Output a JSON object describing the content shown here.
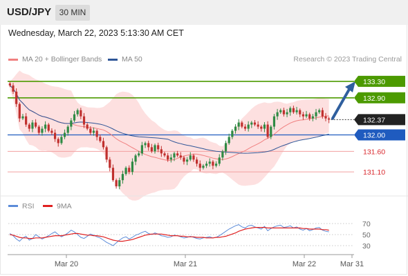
{
  "header": {
    "symbol": "USD/JPY",
    "interval": "30 MIN"
  },
  "timestamp": "Wednesday, March 22, 2023 5:13:30 AM CET",
  "legend": [
    {
      "label": "MA 20 + Bollinger Bands",
      "color": "#f08080"
    },
    {
      "label": "MA 50",
      "color": "#2e5597"
    }
  ],
  "copyright": "Research © 2023 Trading Central",
  "colors": {
    "green": "#4c9a00",
    "blue": "#1f5bbf",
    "red": "#d9292e",
    "candle_up": "#2f8a44",
    "candle_down": "#c0302e",
    "arrow": "#2f5f9e",
    "band_fill": "#fcd6d6"
  },
  "chart_data": [
    {
      "type": "candlestick",
      "ylim": [
        130.55,
        133.6
      ],
      "levels": [
        {
          "value": 133.3,
          "label": "133.30",
          "style": "green-box"
        },
        {
          "value": 132.9,
          "label": "132.90",
          "style": "green-box"
        },
        {
          "value": 132.37,
          "label": "132.37",
          "style": "current"
        },
        {
          "value": 132.0,
          "label": "132.00",
          "style": "blue-box"
        },
        {
          "value": 131.6,
          "label": "131.60",
          "style": "red-text"
        },
        {
          "value": 131.1,
          "label": "131.10",
          "style": "red-text"
        }
      ],
      "x_ticks": [
        "Mar 20",
        "Mar 21",
        "Mar 22",
        "Mar 31"
      ],
      "arrow": {
        "from": 132.4,
        "to": 133.3
      },
      "closes": [
        133.2,
        133.05,
        132.75,
        132.4,
        132.45,
        132.25,
        132.15,
        132.3,
        132.2,
        132.05,
        132.15,
        132.25,
        132.1,
        132.05,
        131.9,
        131.8,
        131.95,
        132.05,
        132.2,
        132.35,
        132.5,
        132.6,
        132.45,
        132.25,
        132.15,
        132.05,
        132.1,
        131.95,
        131.85,
        131.7,
        131.4,
        131.2,
        130.9,
        130.75,
        130.9,
        131.05,
        131.2,
        131.1,
        131.35,
        131.5,
        131.55,
        131.75,
        131.8,
        131.7,
        131.6,
        131.75,
        131.65,
        131.55,
        131.5,
        131.4,
        131.45,
        131.55,
        131.5,
        131.45,
        131.35,
        131.4,
        131.5,
        131.4,
        131.3,
        131.2,
        131.25,
        131.3,
        131.35,
        131.25,
        131.3,
        131.45,
        131.6,
        131.8,
        131.95,
        132.1,
        132.2,
        132.3,
        132.2,
        132.15,
        132.25,
        132.3,
        132.25,
        132.2,
        132.15,
        132.25,
        131.95,
        132.2,
        132.45,
        132.55,
        132.6,
        132.5,
        132.55,
        132.65,
        132.55,
        132.6,
        132.5,
        132.45,
        132.5,
        132.4,
        132.45,
        132.55,
        132.6,
        132.45,
        132.4,
        132.37
      ]
    },
    {
      "type": "line",
      "title": "RSI",
      "series": [
        {
          "name": "RSI",
          "color": "#5b8bd8"
        },
        {
          "name": "9MA",
          "color": "#e02020"
        }
      ],
      "ylim": [
        20,
        80
      ],
      "y_ticks": [
        30,
        50,
        70
      ],
      "rsi": [
        52,
        48,
        42,
        38,
        44,
        47,
        40,
        43,
        50,
        46,
        42,
        45,
        48,
        52,
        55,
        50,
        46,
        49,
        53,
        58,
        55,
        50,
        45,
        43,
        47,
        51,
        49,
        46,
        44,
        40,
        36,
        33,
        30,
        35,
        40,
        44,
        46,
        42,
        45,
        49,
        51,
        54,
        56,
        52,
        50,
        53,
        51,
        48,
        47,
        45,
        46,
        49,
        48,
        46,
        44,
        45,
        47,
        45,
        43,
        42,
        44,
        45,
        46,
        44,
        45,
        48,
        52,
        56,
        60,
        63,
        66,
        68,
        64,
        62,
        66,
        67,
        64,
        62,
        60,
        65,
        57,
        61,
        64,
        66,
        67,
        63,
        64,
        66,
        62,
        64,
        60,
        58,
        61,
        57,
        59,
        62,
        63,
        58,
        56,
        55
      ],
      "ma9": [
        50,
        49,
        47,
        45,
        44,
        44,
        43,
        43,
        44,
        44,
        44,
        45,
        46,
        47,
        48,
        48,
        48,
        49,
        50,
        51,
        52,
        52,
        51,
        50,
        49,
        49,
        48,
        48,
        47,
        46,
        44,
        42,
        40,
        39,
        38,
        38,
        39,
        40,
        41,
        43,
        45,
        47,
        49,
        50,
        51,
        51,
        51,
        51,
        50,
        49,
        48,
        48,
        48,
        47,
        47,
        46,
        46,
        46,
        45,
        45,
        45,
        44,
        44,
        44,
        45,
        45,
        46,
        47,
        49,
        51,
        53,
        56,
        58,
        60,
        61,
        62,
        63,
        63,
        63,
        63,
        62,
        62,
        62,
        62,
        62,
        62,
        62,
        62,
        62,
        62,
        62,
        61,
        61,
        60,
        60,
        60,
        60,
        59,
        59,
        58
      ]
    }
  ]
}
